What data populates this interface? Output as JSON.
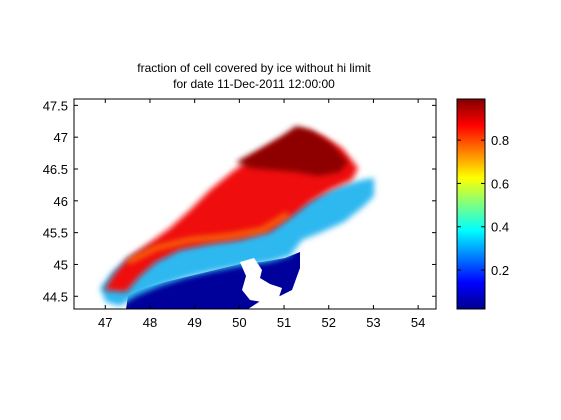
{
  "chart_data": {
    "type": "heatmap",
    "title": "fraction of cell covered by ice without hi limit",
    "subtitle": "for date 11-Dec-2011 12:00:00",
    "xlabel": "",
    "ylabel": "",
    "xlim": [
      46.3,
      54.4
    ],
    "ylim": [
      44.3,
      47.6
    ],
    "xticks": [
      "47",
      "48",
      "49",
      "50",
      "51",
      "52",
      "53",
      "54"
    ],
    "yticks": [
      "44.5",
      "45",
      "45.5",
      "46",
      "46.5",
      "47",
      "47.5"
    ],
    "colorbar": {
      "colormap": "jet",
      "range": [
        0.02,
        0.99
      ],
      "ticks": [
        "0.2",
        "0.4",
        "0.6",
        "0.8"
      ]
    },
    "grid": false
  }
}
